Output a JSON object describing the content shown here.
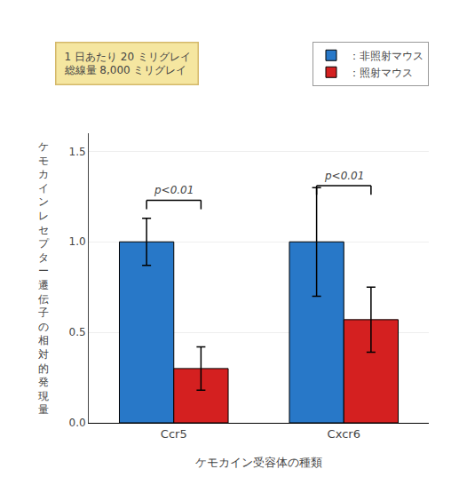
{
  "chart_data": {
    "type": "bar",
    "categories": [
      "Ccr5",
      "Cxcr6"
    ],
    "series": [
      {
        "name": "：非照射マウス",
        "color": "#2878C8",
        "values": [
          1.0,
          1.0
        ],
        "errors": [
          0.13,
          0.3
        ]
      },
      {
        "name": "：照射マウス",
        "color": "#D42020",
        "values": [
          0.3,
          0.57
        ],
        "errors": [
          0.12,
          0.18
        ]
      }
    ],
    "xlabel": "ケモカイン受容体の種類",
    "ylabel": "ケモカインレセプター遷伝子の相対的発現量",
    "ylim": [
      0,
      1.6
    ],
    "yticks": [
      {
        "value": 0,
        "label": "0.0"
      },
      0.5,
      {
        "value": 1,
        "label": "1.0"
      },
      1.5
    ],
    "grid": true,
    "legend": "upper right",
    "brackets": [
      {
        "category": "Ccr5",
        "y": 1.23,
        "text": "p<0.01"
      },
      {
        "category": "Cxcr6",
        "y": 1.31,
        "text": "p<0.01"
      }
    ],
    "bracket_drop": 0.05,
    "annotation": {
      "text": [
        "1 日あたり 20 ミリグレイ",
        "総線量 8,000 ミリグレイ"
      ],
      "color": "#F5E6A0",
      "border_color": "#D4B86A"
    }
  }
}
